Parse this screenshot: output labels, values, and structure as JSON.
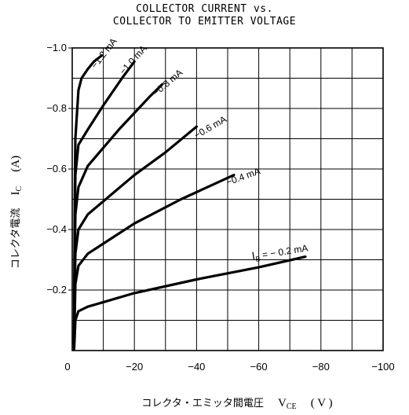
{
  "chart_data": {
    "type": "line",
    "title_line1": "COLLECTOR CURRENT vs.",
    "title_line2": "COLLECTOR TO EMITTER VOLTAGE",
    "xlabel": "コレクタ・エミッタ間電圧 V_CE (V)",
    "xlabel_parts": {
      "text": "コレクタ・エミッタ間電圧",
      "symbol": "V",
      "sub": "CE",
      "unit": "( V )"
    },
    "ylabel": "コレクタ電流 I_C (A)",
    "ylabel_parts": {
      "text": "コレクタ電流",
      "symbol": "I",
      "sub": "C",
      "unit": "(A)"
    },
    "xlim": [
      0,
      -100
    ],
    "ylim": [
      0,
      -1.0
    ],
    "x_ticks": [
      {
        "value": 0,
        "label": "0"
      },
      {
        "value": -20,
        "label": "−20"
      },
      {
        "value": -40,
        "label": "−40"
      },
      {
        "value": -60,
        "label": "−60"
      },
      {
        "value": -80,
        "label": "−80"
      },
      {
        "value": -100,
        "label": "−100"
      }
    ],
    "y_ticks": [
      {
        "value": -0.2,
        "label": "−0.2"
      },
      {
        "value": -0.4,
        "label": "−0.4"
      },
      {
        "value": -0.6,
        "label": "−0.6"
      },
      {
        "value": -0.8,
        "label": "−0.8"
      },
      {
        "value": -1.0,
        "label": "−1.0"
      }
    ],
    "grid": true,
    "grid_step_x": -10,
    "grid_step_y": -0.1,
    "series": [
      {
        "name": "I_B = −0.2 mA",
        "label": "I_B = − 0.2 mA",
        "points": [
          [
            -0.6,
            -0.005
          ],
          [
            -0.8,
            -0.05
          ],
          [
            -1.0,
            -0.1
          ],
          [
            -2,
            -0.13
          ],
          [
            -5,
            -0.145
          ],
          [
            -20,
            -0.19
          ],
          [
            -40,
            -0.235
          ],
          [
            -60,
            -0.275
          ],
          [
            -75,
            -0.31
          ]
        ]
      },
      {
        "name": "−0.4 mA",
        "label": "−0.4 mA",
        "points": [
          [
            -0.6,
            -0.01
          ],
          [
            -0.8,
            -0.12
          ],
          [
            -1.0,
            -0.22
          ],
          [
            -2,
            -0.28
          ],
          [
            -5,
            -0.32
          ],
          [
            -20,
            -0.42
          ],
          [
            -35,
            -0.5
          ],
          [
            -52,
            -0.58
          ]
        ]
      },
      {
        "name": "−0.6 mA",
        "label": "−0.6 mA",
        "points": [
          [
            -0.6,
            -0.02
          ],
          [
            -0.8,
            -0.2
          ],
          [
            -1.0,
            -0.32
          ],
          [
            -2,
            -0.4
          ],
          [
            -5,
            -0.45
          ],
          [
            -20,
            -0.58
          ],
          [
            -30,
            -0.655
          ],
          [
            -40,
            -0.74
          ]
        ]
      },
      {
        "name": "−0.8 mA",
        "label": "−0.8 mA",
        "points": [
          [
            -0.6,
            -0.02
          ],
          [
            -0.8,
            -0.3
          ],
          [
            -1.0,
            -0.45
          ],
          [
            -2,
            -0.54
          ],
          [
            -5,
            -0.61
          ],
          [
            -15,
            -0.73
          ],
          [
            -25,
            -0.84
          ],
          [
            -29,
            -0.88
          ]
        ]
      },
      {
        "name": "−1.0 mA",
        "label": "−1.0 mA",
        "points": [
          [
            -0.6,
            -0.02
          ],
          [
            -0.8,
            -0.4
          ],
          [
            -1.0,
            -0.58
          ],
          [
            -2,
            -0.68
          ],
          [
            -5,
            -0.73
          ],
          [
            -10,
            -0.81
          ],
          [
            -16,
            -0.9
          ],
          [
            -20,
            -0.955
          ]
        ]
      },
      {
        "name": "−1.2 mA",
        "label": "−1.2 mA",
        "points": [
          [
            -0.6,
            -0.02
          ],
          [
            -0.8,
            -0.5
          ],
          [
            -1.0,
            -0.7
          ],
          [
            -2,
            -0.86
          ],
          [
            -3,
            -0.9
          ],
          [
            -5,
            -0.93
          ],
          [
            -7,
            -0.955
          ],
          [
            -9.5,
            -0.975
          ]
        ]
      }
    ],
    "labels": [
      {
        "series": 0,
        "text": "I",
        "sub": "B",
        "rest": " = − 0.2 mA",
        "x": -58,
        "y": -0.3,
        "angle": -9
      },
      {
        "series": 1,
        "text": "−0.4 mA",
        "x": -50,
        "y": -0.545,
        "angle": -20
      },
      {
        "series": 2,
        "text": "−0.6 mA",
        "x": -40,
        "y": -0.7,
        "angle": -30
      },
      {
        "series": 3,
        "text": "−0.8 mA",
        "x": -27,
        "y": -0.84,
        "angle": -40
      },
      {
        "series": 4,
        "text": "−1.0 mA",
        "x": -16.5,
        "y": -0.91,
        "angle": -48
      },
      {
        "series": 5,
        "text": "−1.2 mA",
        "x": -7.5,
        "y": -0.93,
        "angle": -52
      }
    ]
  }
}
